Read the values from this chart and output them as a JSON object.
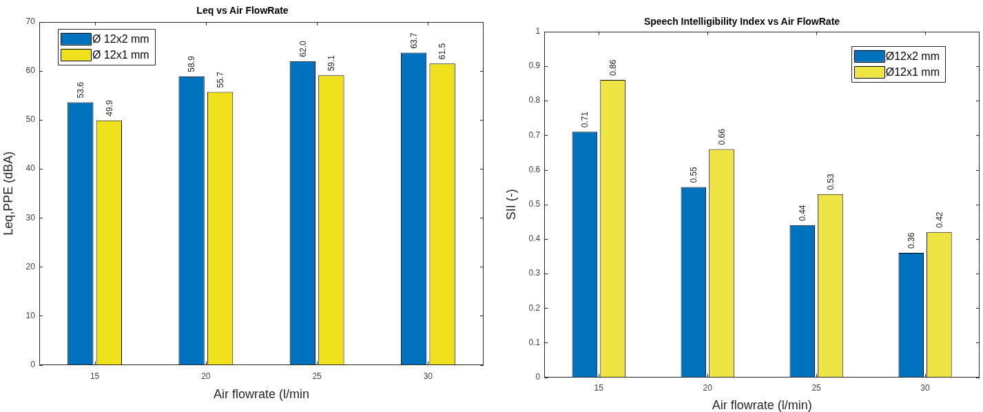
{
  "chart_data": [
    {
      "type": "bar",
      "title": "Leq vs Air FlowRate",
      "xlabel": "Air flowrate (l/min",
      "ylabel": "Leq,PPE (dBA)",
      "categories": [
        "15",
        "20",
        "25",
        "30"
      ],
      "series": [
        {
          "name": "Ø 12x2 mm",
          "color": "#0072bd",
          "values": [
            53.6,
            58.9,
            62.0,
            63.7
          ],
          "value_labels": [
            "53.6",
            "58.9",
            "62.0",
            "63.7"
          ]
        },
        {
          "name": "Ø 12x1 mm",
          "color": "#efe11c",
          "values": [
            49.9,
            55.7,
            59.1,
            61.5
          ],
          "value_labels": [
            "49.9",
            "55.7",
            "59.1",
            "61.5"
          ]
        }
      ],
      "ylim": [
        0,
        70
      ],
      "yticks": [
        0,
        10,
        20,
        30,
        40,
        50,
        60,
        70
      ],
      "legend": "top left"
    },
    {
      "type": "bar",
      "title": "Speech Intelligibility Index vs Air FlowRate",
      "xlabel": "Air flowrate (l/min)",
      "ylabel": "SII (-)",
      "categories": [
        "15",
        "20",
        "25",
        "30"
      ],
      "series": [
        {
          "name": "Ø12x2 mm",
          "color": "#0072bd",
          "values": [
            0.71,
            0.55,
            0.44,
            0.36
          ]
        },
        {
          "name": "Ø12x1 mm",
          "color": "#eee443",
          "values": [
            0.86,
            0.66,
            0.53,
            0.42
          ]
        }
      ],
      "ylim": [
        0,
        1
      ],
      "yticks": [
        0,
        0.1,
        0.2,
        0.3,
        0.4,
        0.5,
        0.6,
        0.7,
        0.8,
        0.9,
        1
      ],
      "legend": "top right",
      "data_labels": true
    }
  ]
}
